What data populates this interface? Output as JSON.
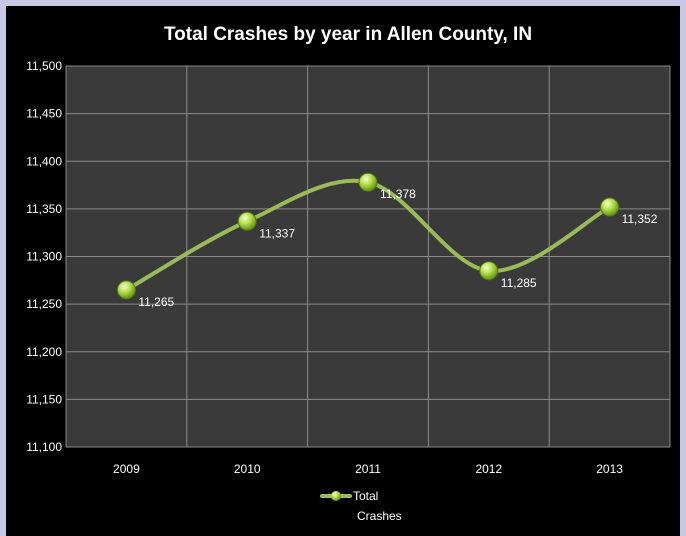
{
  "chart_data": {
    "type": "line",
    "title": "Total Crashes by year in Allen County, IN",
    "categories": [
      "2009",
      "2010",
      "2011",
      "2012",
      "2013"
    ],
    "series": [
      {
        "name": "Total Crashes",
        "values": [
          11265,
          11337,
          11378,
          11285,
          11352
        ]
      }
    ],
    "data_labels": [
      "11,265",
      "11,337",
      "11,378",
      "11,285",
      "11,352"
    ],
    "y_ticks": [
      "11,100",
      "11,150",
      "11,200",
      "11,250",
      "11,300",
      "11,350",
      "11,400",
      "11,450",
      "11,500"
    ],
    "ylim": [
      11100,
      11500
    ],
    "grid": true,
    "legend_position": "bottom",
    "legend_lines": [
      "Total",
      "Crashes"
    ],
    "colors": {
      "page_border": "#c8c8e6",
      "background": "#000000",
      "plot_area": "#3a3a3a",
      "grid": "#8a8a8a",
      "line": "#9bbb59",
      "marker": "#a6d83a"
    }
  }
}
